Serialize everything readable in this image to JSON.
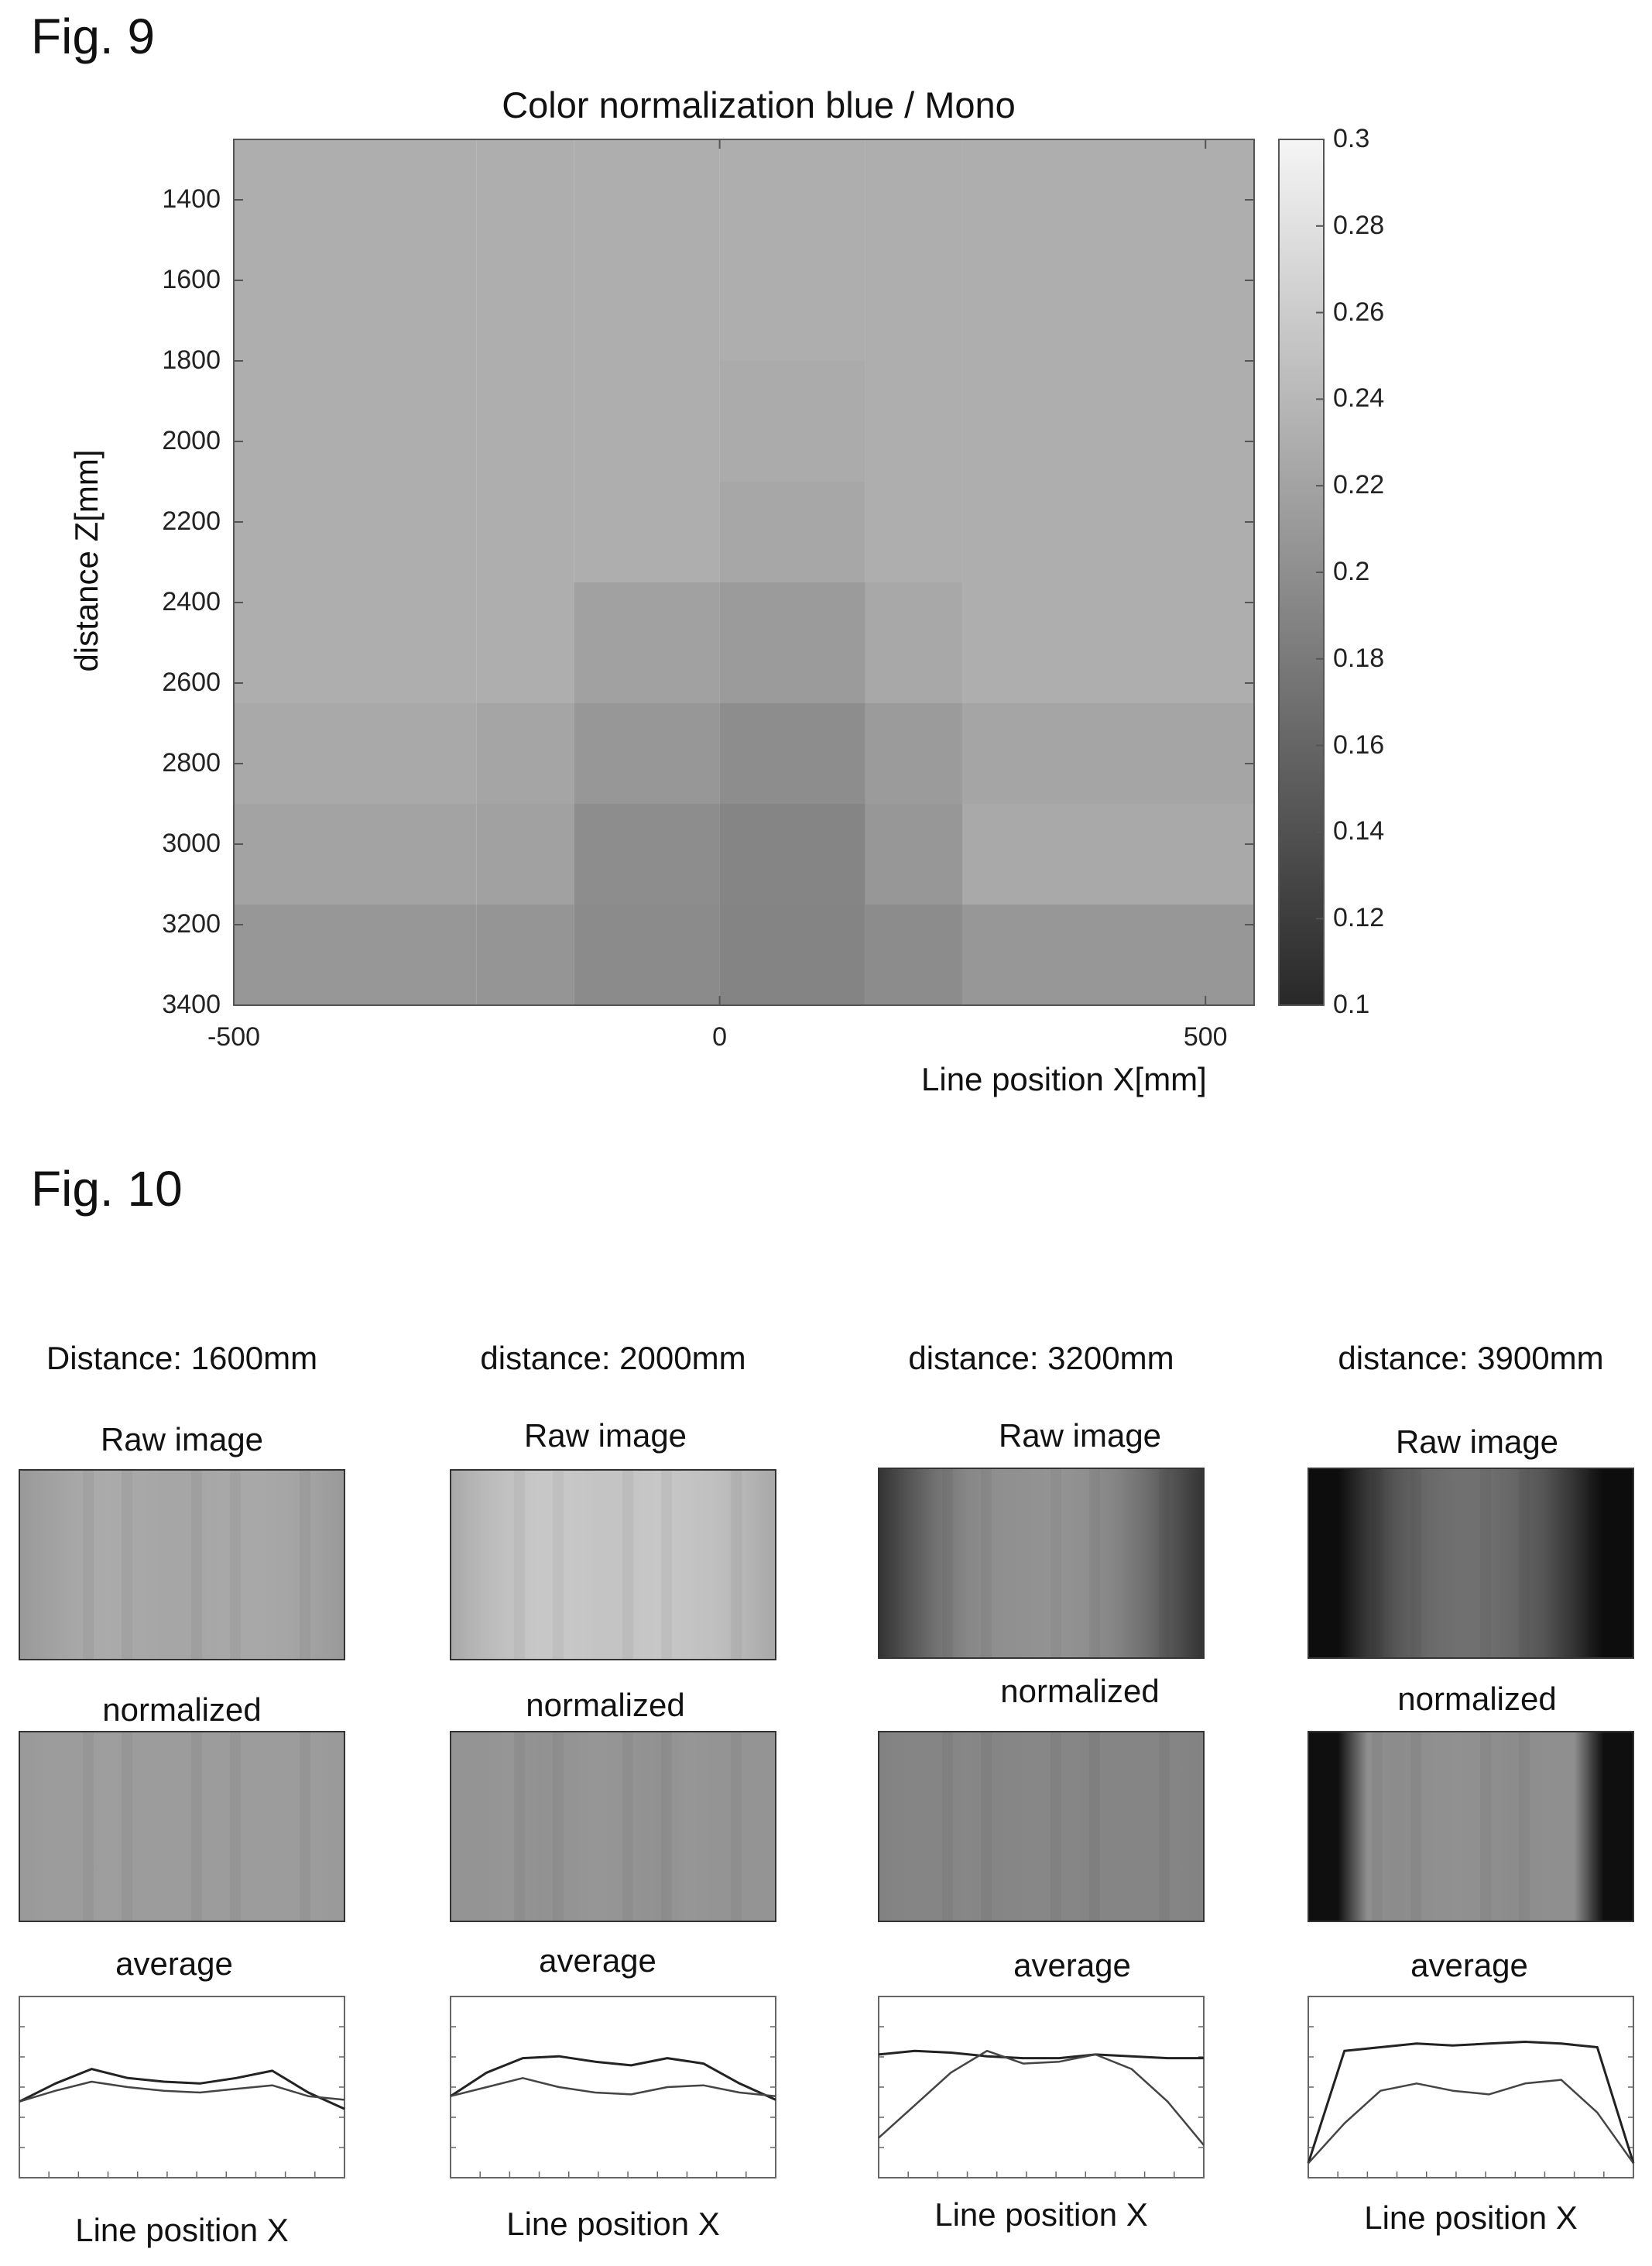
{
  "fig9": {
    "label": "Fig. 9",
    "chart_data": {
      "type": "heatmap",
      "title": "Color normalization blue / Mono",
      "xlabel": "Line position X[mm]",
      "ylabel": "distance Z[mm]",
      "x_ticks": [
        "-500",
        "0",
        "500"
      ],
      "y_ticks": [
        "1400",
        "1600",
        "1800",
        "2000",
        "2200",
        "2400",
        "2600",
        "2800",
        "3000",
        "3200",
        "3400"
      ],
      "xlim": [
        -500,
        550
      ],
      "ylim": [
        1250,
        3400
      ],
      "colorbar": {
        "range": [
          0.1,
          0.3
        ],
        "ticks": [
          "0.3",
          "0.28",
          "0.26",
          "0.24",
          "0.22",
          "0.2",
          "0.18",
          "0.16",
          "0.14",
          "0.12",
          "0.1"
        ]
      },
      "x_edges": [
        -550,
        -250,
        -150,
        0,
        150,
        250,
        550
      ],
      "y_edges": [
        1250,
        1800,
        2100,
        2350,
        2650,
        2900,
        3150,
        3400
      ],
      "values": [
        [
          0.231,
          0.231,
          0.231,
          0.231,
          0.231,
          0.231
        ],
        [
          0.231,
          0.231,
          0.231,
          0.228,
          0.231,
          0.231
        ],
        [
          0.231,
          0.231,
          0.231,
          0.224,
          0.231,
          0.231
        ],
        [
          0.231,
          0.231,
          0.218,
          0.212,
          0.225,
          0.231
        ],
        [
          0.226,
          0.222,
          0.208,
          0.199,
          0.212,
          0.222
        ],
        [
          0.22,
          0.218,
          0.199,
          0.191,
          0.208,
          0.226
        ],
        [
          0.208,
          0.206,
          0.197,
          0.19,
          0.198,
          0.208
        ]
      ]
    }
  },
  "fig10": {
    "label": "Fig. 10",
    "panels": [
      {
        "distance": "Distance: 1600mm",
        "raw_label": "Raw image",
        "norm_label": "normalized",
        "avg_label": "average",
        "xlabel": "Line position X",
        "raw_profile": [
          0.6,
          0.63,
          0.66,
          0.67,
          0.66,
          0.65,
          0.65,
          0.66,
          0.66,
          0.65,
          0.63,
          0.6
        ],
        "norm_profile": [
          0.6,
          0.61,
          0.61,
          0.62,
          0.61,
          0.61,
          0.61,
          0.61,
          0.61,
          0.61,
          0.61,
          0.6
        ],
        "chart_data": {
          "type": "line",
          "xlabel": "Line position X",
          "series": [
            {
              "values": [
                0.42,
                0.52,
                0.6,
                0.55,
                0.53,
                0.52,
                0.55,
                0.59,
                0.47,
                0.38
              ]
            },
            {
              "values": [
                0.42,
                0.48,
                0.53,
                0.5,
                0.48,
                0.47,
                0.49,
                0.51,
                0.45,
                0.43
              ]
            }
          ]
        }
      },
      {
        "distance": "distance: 2000mm",
        "raw_label": "Raw image",
        "norm_label": "normalized",
        "avg_label": "average",
        "xlabel": "Line position X",
        "raw_profile": [
          0.66,
          0.72,
          0.76,
          0.78,
          0.78,
          0.77,
          0.77,
          0.78,
          0.77,
          0.75,
          0.71,
          0.66
        ],
        "norm_profile": [
          0.58,
          0.58,
          0.59,
          0.57,
          0.58,
          0.59,
          0.58,
          0.57,
          0.59,
          0.58,
          0.58,
          0.58
        ],
        "chart_data": {
          "type": "line",
          "xlabel": "Line position X",
          "series": [
            {
              "values": [
                0.45,
                0.58,
                0.66,
                0.67,
                0.64,
                0.62,
                0.66,
                0.63,
                0.52,
                0.43
              ]
            },
            {
              "values": [
                0.45,
                0.5,
                0.55,
                0.5,
                0.47,
                0.46,
                0.5,
                0.51,
                0.47,
                0.45
              ]
            }
          ]
        }
      },
      {
        "distance": "distance: 3200mm",
        "raw_label": "Raw image",
        "norm_label": "normalized",
        "avg_label": "average",
        "xlabel": "Line position X",
        "raw_profile": [
          0.2,
          0.33,
          0.45,
          0.53,
          0.56,
          0.57,
          0.58,
          0.56,
          0.52,
          0.44,
          0.32,
          0.2
        ],
        "norm_profile": [
          0.51,
          0.52,
          0.52,
          0.53,
          0.52,
          0.53,
          0.53,
          0.52,
          0.52,
          0.52,
          0.52,
          0.51
        ],
        "chart_data": {
          "type": "line",
          "xlabel": "Line position X",
          "series": [
            {
              "values": [
                0.68,
                0.7,
                0.69,
                0.67,
                0.66,
                0.66,
                0.68,
                0.67,
                0.66,
                0.66
              ]
            },
            {
              "values": [
                0.22,
                0.4,
                0.58,
                0.7,
                0.63,
                0.64,
                0.68,
                0.6,
                0.42,
                0.18
              ]
            }
          ]
        }
      },
      {
        "distance": "distance: 3900mm",
        "raw_label": "Raw image",
        "norm_label": "normalized",
        "avg_label": "average",
        "xlabel": "Line position X",
        "raw_profile": [
          0.05,
          0.05,
          0.22,
          0.34,
          0.41,
          0.44,
          0.44,
          0.4,
          0.33,
          0.2,
          0.05,
          0.05
        ],
        "norm_profile": [
          0.06,
          0.06,
          0.56,
          0.55,
          0.56,
          0.57,
          0.56,
          0.55,
          0.56,
          0.56,
          0.06,
          0.06
        ],
        "chart_data": {
          "type": "line",
          "xlabel": "Line position X",
          "series": [
            {
              "values": [
                0.08,
                0.7,
                0.72,
                0.74,
                0.73,
                0.74,
                0.75,
                0.74,
                0.72,
                0.08
              ]
            },
            {
              "values": [
                0.08,
                0.3,
                0.48,
                0.52,
                0.48,
                0.46,
                0.52,
                0.54,
                0.36,
                0.08
              ]
            }
          ]
        }
      }
    ]
  }
}
